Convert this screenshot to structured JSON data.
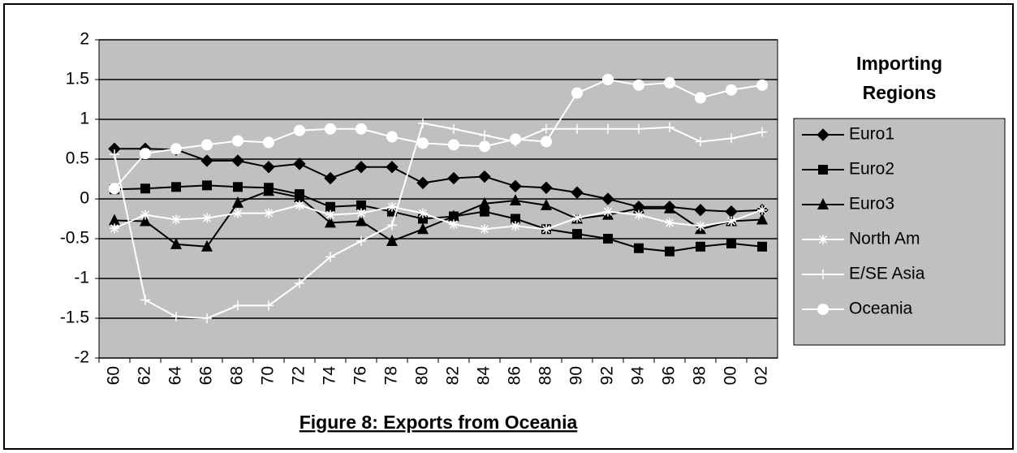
{
  "chart_data": {
    "type": "line",
    "title": "Figure 8: Exports from Oceania",
    "legend_title": "Importing Regions",
    "categories": [
      "60",
      "62",
      "64",
      "66",
      "68",
      "70",
      "72",
      "74",
      "76",
      "78",
      "80",
      "82",
      "84",
      "86",
      "88",
      "90",
      "92",
      "94",
      "96",
      "98",
      "00",
      "02"
    ],
    "series": [
      {
        "name": "Euro1",
        "color": "#000000",
        "marker": "diamond",
        "values": [
          0.63,
          0.63,
          0.62,
          0.48,
          0.48,
          0.4,
          0.44,
          0.26,
          0.4,
          0.4,
          0.2,
          0.26,
          0.28,
          0.16,
          0.14,
          0.08,
          0,
          -0.1,
          -0.1,
          -0.14,
          -0.16,
          -0.14
        ]
      },
      {
        "name": "Euro2",
        "color": "#000000",
        "marker": "square",
        "values": [
          0.12,
          0.13,
          0.15,
          0.17,
          0.15,
          0.14,
          0.06,
          -0.1,
          -0.08,
          -0.16,
          -0.25,
          -0.22,
          -0.16,
          -0.25,
          -0.38,
          -0.44,
          -0.5,
          -0.62,
          -0.66,
          -0.6,
          -0.56,
          -0.6
        ]
      },
      {
        "name": "Euro3",
        "color": "#000000",
        "marker": "triangle",
        "values": [
          -0.27,
          -0.28,
          -0.57,
          -0.6,
          -0.05,
          0.1,
          0.02,
          -0.3,
          -0.28,
          -0.53,
          -0.38,
          -0.22,
          -0.06,
          -0.02,
          -0.08,
          -0.25,
          -0.2,
          -0.12,
          -0.12,
          -0.38,
          -0.28,
          -0.26
        ]
      },
      {
        "name": "North Am",
        "color": "#ffffff",
        "marker": "asterisk",
        "values": [
          -0.37,
          -0.2,
          -0.26,
          -0.24,
          -0.18,
          -0.18,
          -0.08,
          -0.2,
          -0.18,
          -0.1,
          -0.18,
          -0.32,
          -0.38,
          -0.34,
          -0.38,
          -0.24,
          -0.16,
          -0.2,
          -0.3,
          -0.34,
          -0.28,
          -0.14
        ]
      },
      {
        "name": "E/SE Asia",
        "color": "#ffffff",
        "marker": "plus",
        "values": [
          0.56,
          -1.27,
          -1.48,
          -1.5,
          -1.34,
          -1.34,
          -1.06,
          -0.73,
          -0.53,
          -0.33,
          0.95,
          0.88,
          0.8,
          0.72,
          0.88,
          0.88,
          0.88,
          0.88,
          0.9,
          0.72,
          0.76,
          0.84
        ]
      },
      {
        "name": "Oceania",
        "color": "#ffffff",
        "marker": "circle",
        "values": [
          0.13,
          0.57,
          0.63,
          0.68,
          0.73,
          0.71,
          0.86,
          0.88,
          0.88,
          0.78,
          0.7,
          0.68,
          0.66,
          0.75,
          0.72,
          1.33,
          1.5,
          1.43,
          1.46,
          1.27,
          1.37,
          1.43
        ]
      }
    ],
    "ylim": [
      -2,
      2
    ],
    "yticks": [
      -2,
      -1.5,
      -1,
      -0.5,
      0,
      0.5,
      1,
      1.5,
      2
    ],
    "grid": true,
    "plot_color": "#c0c0c0"
  }
}
